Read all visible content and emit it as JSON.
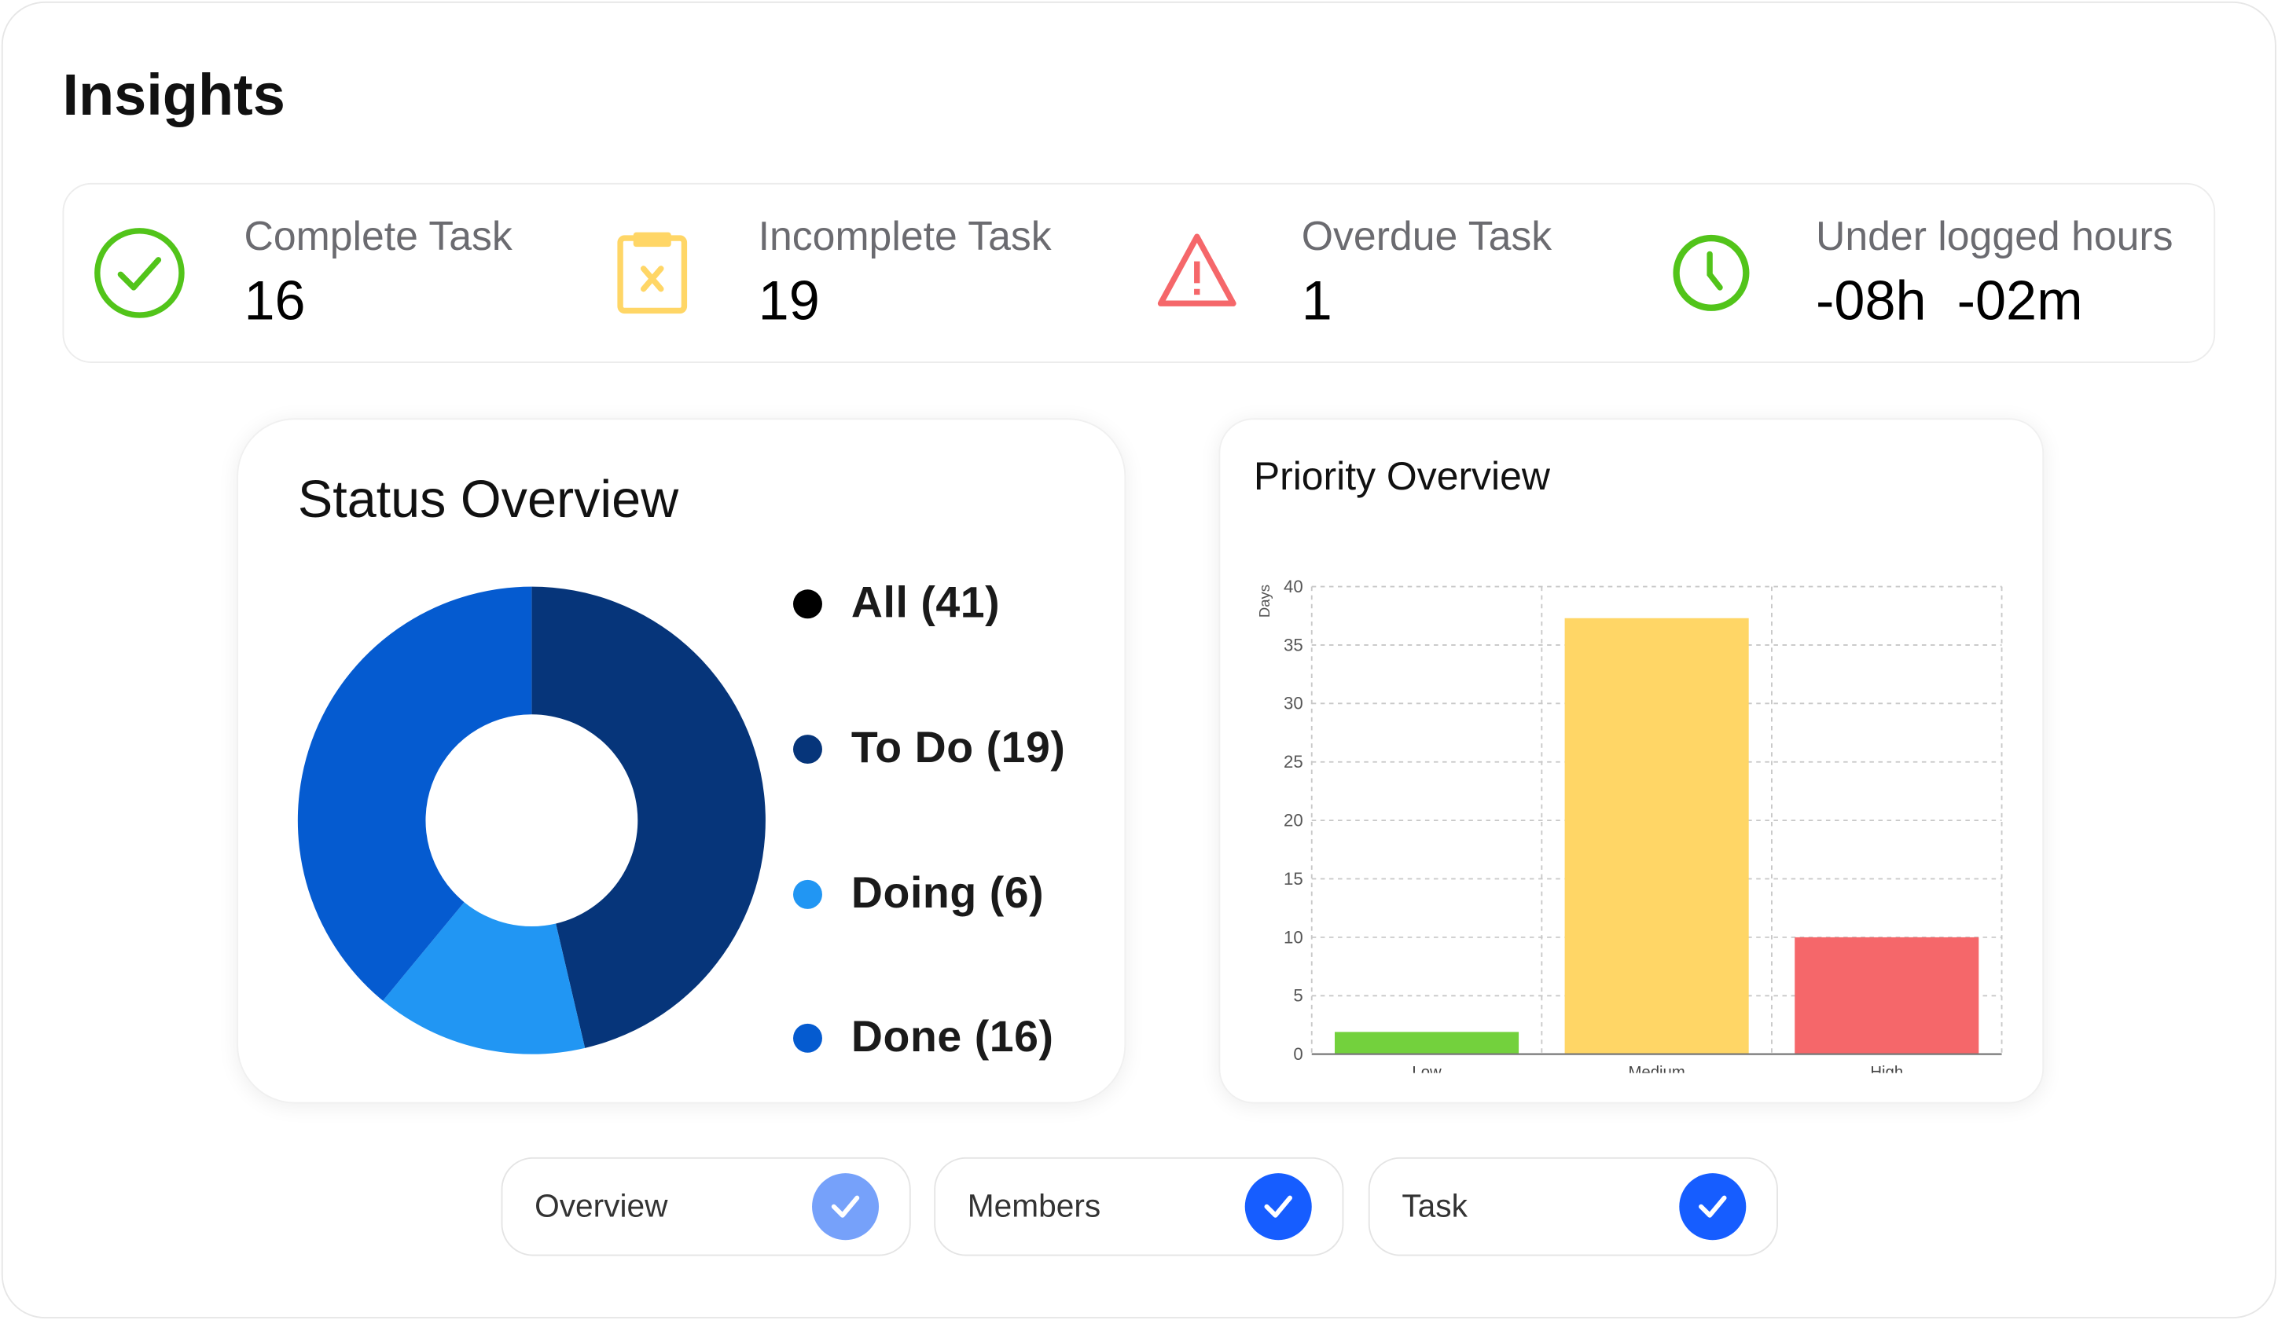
{
  "page": {
    "title": "Insights"
  },
  "stats": [
    {
      "label": "Complete Task",
      "value": "16",
      "icon": "check-circle-icon",
      "color": "#52c41a"
    },
    {
      "label": "Incomplete Task",
      "value": "19",
      "icon": "clipboard-x-icon",
      "color": "#ffd666"
    },
    {
      "label": "Overdue Task",
      "value": "1",
      "icon": "warning-triangle-icon",
      "color": "#f5676a"
    },
    {
      "label": "Under logged hours",
      "value": "-08h  -02m",
      "icon": "clock-icon",
      "color": "#52c41a"
    }
  ],
  "status_overview": {
    "title": "Status Overview",
    "legend": [
      {
        "label": "All (41)",
        "color": "#000000"
      },
      {
        "label": "To Do (19)",
        "color": "#06357a"
      },
      {
        "label": "Doing (6)",
        "color": "#2196f3"
      },
      {
        "label": "Done (16)",
        "color": "#055bd0"
      }
    ]
  },
  "chart_data": [
    {
      "type": "pie",
      "title": "Status Overview",
      "donut": true,
      "categories": [
        "To Do",
        "Doing",
        "Done"
      ],
      "values": [
        19,
        6,
        16
      ],
      "colors": [
        "#06357a",
        "#2196f3",
        "#055bd0"
      ]
    },
    {
      "type": "bar",
      "title": "Priority Overview",
      "xlabel": "",
      "ylabel": "Days",
      "categories": [
        "Low",
        "Medium",
        "High"
      ],
      "values": [
        1.9,
        37.3,
        10
      ],
      "colors": [
        "#73d13d",
        "#ffd666",
        "#f5676a"
      ],
      "ylim": [
        0,
        40
      ],
      "yticks": [
        "0",
        "5",
        "10",
        "15",
        "20",
        "25",
        "30",
        "35",
        "40"
      ],
      "grid": true
    }
  ],
  "toggles": [
    {
      "label": "Overview",
      "checked": true,
      "color": "#76a1fa"
    },
    {
      "label": "Members",
      "checked": true,
      "color": "#165dff"
    },
    {
      "label": "Task",
      "checked": true,
      "color": "#165dff"
    }
  ]
}
